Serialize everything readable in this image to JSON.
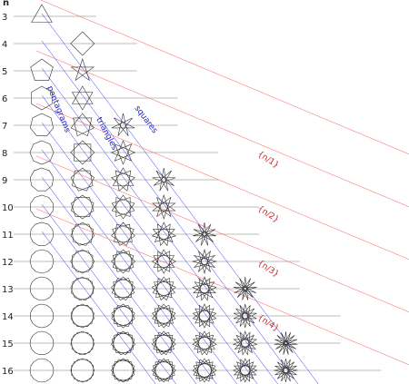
{
  "header": {
    "n_label": "n"
  },
  "rows": [
    {
      "n": 3,
      "label": "3"
    },
    {
      "n": 4,
      "label": "4"
    },
    {
      "n": 5,
      "label": "5"
    },
    {
      "n": 6,
      "label": "6"
    },
    {
      "n": 7,
      "label": "7"
    },
    {
      "n": 8,
      "label": "8"
    },
    {
      "n": 9,
      "label": "9"
    },
    {
      "n": 10,
      "label": "10"
    },
    {
      "n": 11,
      "label": "11"
    },
    {
      "n": 12,
      "label": "12"
    },
    {
      "n": 13,
      "label": "13"
    },
    {
      "n": 14,
      "label": "14"
    },
    {
      "n": 15,
      "label": "15"
    },
    {
      "n": 16,
      "label": "16"
    }
  ],
  "blue_labels": {
    "pentagrams": "pentagrams",
    "triangles": "triangles",
    "squares": "squares"
  },
  "red_labels": {
    "n1": "{n/1}",
    "n2": "{n/2}",
    "n3": "{n/3}",
    "n4": "{n/4}"
  },
  "colors": {
    "grid": "#a8a8a8",
    "blue": "#3333ff",
    "red": "#ff5555",
    "shape": "#333333",
    "label_blue": "#2222cc",
    "label_red": "#cc2222"
  }
}
